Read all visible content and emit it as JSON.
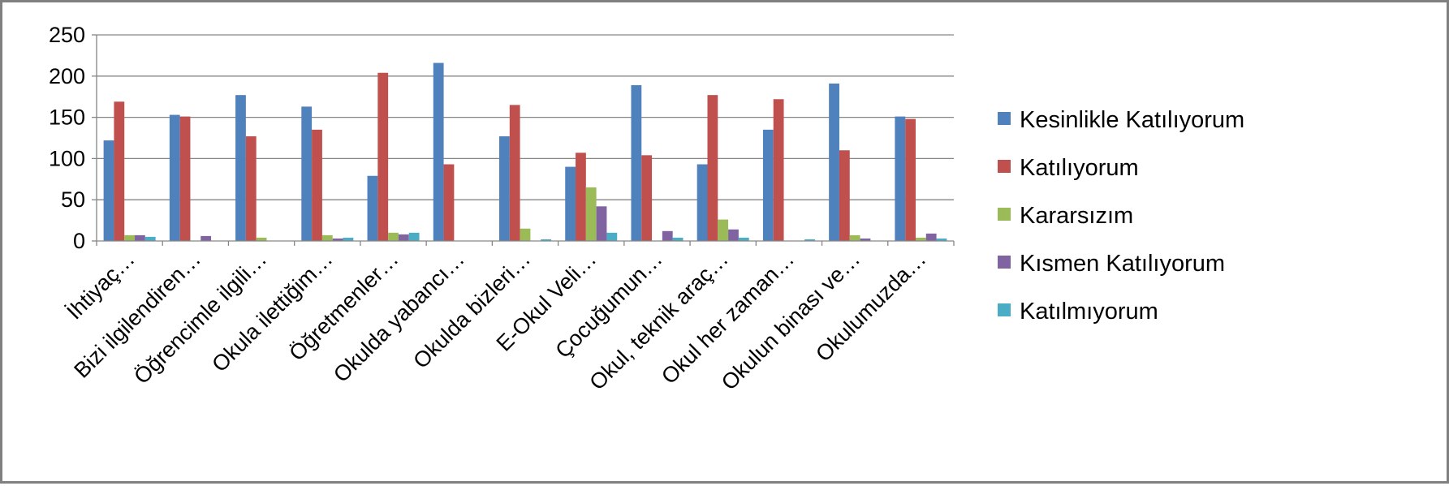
{
  "chart_data": {
    "type": "bar",
    "title": "",
    "xlabel": "",
    "ylabel": "",
    "ylim": [
      0,
      250
    ],
    "yticks": [
      0,
      50,
      100,
      150,
      200,
      250
    ],
    "grid": true,
    "legend_position": "right",
    "categories": [
      "İhtiyaç…",
      "Bizi ilgilendiren…",
      "Öğrencimle ilgili…",
      "Okula ilettiğim…",
      "Öğretmenler…",
      "Okulda yabancı…",
      "Okulda bizleri…",
      "E-Okul Veli…",
      "Çocuğumun…",
      "Okul, teknik araç…",
      "Okul her zaman…",
      "Okulun binası ve…",
      "Okulumuzda…"
    ],
    "series": [
      {
        "name": "Kesinlikle Katılıyorum",
        "color": "#4F81BD",
        "values": [
          122,
          153,
          177,
          163,
          79,
          216,
          127,
          90,
          189,
          93,
          135,
          191,
          151
        ]
      },
      {
        "name": "Katılıyorum",
        "color": "#C0504D",
        "values": [
          169,
          151,
          127,
          135,
          204,
          93,
          165,
          107,
          104,
          177,
          172,
          110,
          148
        ]
      },
      {
        "name": "Kararsızım",
        "color": "#9BBB59",
        "values": [
          7,
          0,
          4,
          7,
          10,
          0,
          15,
          65,
          0,
          26,
          0,
          7,
          4
        ]
      },
      {
        "name": "Kısmen Katılıyorum",
        "color": "#8064A2",
        "values": [
          7,
          6,
          0,
          3,
          8,
          0,
          0,
          42,
          12,
          14,
          0,
          3,
          9
        ]
      },
      {
        "name": "Katılmıyorum",
        "color": "#4BACC6",
        "values": [
          5,
          0,
          0,
          4,
          10,
          0,
          2,
          10,
          4,
          4,
          2,
          0,
          3
        ]
      }
    ]
  }
}
